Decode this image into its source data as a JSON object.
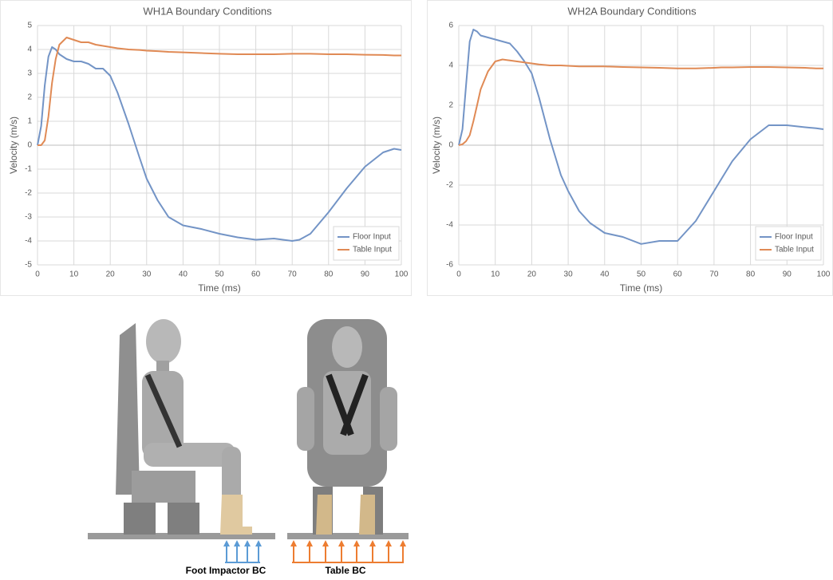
{
  "chart_data": [
    {
      "type": "line",
      "title": "WH1A Boundary Conditions",
      "x_label": "Time (ms)",
      "y_label": "Velocity (m/s)",
      "x": [
        0,
        1,
        2,
        3,
        4,
        5,
        6,
        8,
        10,
        12,
        14,
        16,
        18,
        20,
        22,
        25,
        28,
        30,
        33,
        36,
        40,
        45,
        50,
        55,
        60,
        65,
        70,
        72,
        75,
        80,
        85,
        90,
        95,
        98,
        100
      ],
      "series": [
        {
          "name": "Floor Input",
          "color": "#7394c6",
          "values": [
            0,
            0.8,
            2.5,
            3.7,
            4.1,
            4.0,
            3.8,
            3.6,
            3.5,
            3.5,
            3.4,
            3.2,
            3.2,
            2.9,
            2.2,
            0.9,
            -0.5,
            -1.4,
            -2.3,
            -3.0,
            -3.35,
            -3.5,
            -3.7,
            -3.85,
            -3.95,
            -3.9,
            -4.0,
            -3.95,
            -3.7,
            -2.8,
            -1.8,
            -0.9,
            -0.3,
            -0.15,
            -0.2
          ]
        },
        {
          "name": "Table Input",
          "color": "#e08a55",
          "values": [
            0,
            0,
            0.2,
            1.2,
            2.6,
            3.6,
            4.2,
            4.5,
            4.4,
            4.3,
            4.3,
            4.2,
            4.15,
            4.1,
            4.05,
            4.0,
            3.98,
            3.95,
            3.93,
            3.9,
            3.88,
            3.85,
            3.82,
            3.8,
            3.8,
            3.8,
            3.82,
            3.82,
            3.82,
            3.8,
            3.8,
            3.78,
            3.77,
            3.75,
            3.75
          ]
        }
      ],
      "xlim": [
        0,
        100
      ],
      "xticks": [
        0,
        10,
        20,
        30,
        40,
        50,
        60,
        70,
        80,
        90,
        100
      ],
      "ylim": [
        -5,
        5
      ],
      "yticks": [
        -5,
        -4,
        -3,
        -2,
        -1,
        0,
        1,
        2,
        3,
        4,
        5
      ],
      "grid": true,
      "legend": "lower right"
    },
    {
      "type": "line",
      "title": "WH2A Boundary Conditions",
      "x_label": "Time (ms)",
      "y_label": "Velocity (m/s)",
      "x": [
        0,
        1,
        2,
        3,
        4,
        5,
        6,
        8,
        10,
        12,
        14,
        16,
        18,
        20,
        22,
        25,
        28,
        30,
        33,
        36,
        40,
        45,
        50,
        55,
        60,
        65,
        70,
        72,
        75,
        80,
        85,
        90,
        95,
        98,
        100
      ],
      "series": [
        {
          "name": "Floor Input",
          "color": "#7394c6",
          "values": [
            0,
            0.8,
            3,
            5.2,
            5.8,
            5.7,
            5.5,
            5.4,
            5.3,
            5.2,
            5.1,
            4.7,
            4.2,
            3.6,
            2.4,
            0.3,
            -1.5,
            -2.3,
            -3.3,
            -3.9,
            -4.4,
            -4.6,
            -4.95,
            -4.8,
            -4.8,
            -3.8,
            -2.3,
            -1.7,
            -0.8,
            0.3,
            1.0,
            1.0,
            0.9,
            0.85,
            0.8
          ]
        },
        {
          "name": "Table Input",
          "color": "#e08a55",
          "values": [
            0,
            0.05,
            0.2,
            0.5,
            1.2,
            2.0,
            2.8,
            3.7,
            4.2,
            4.3,
            4.25,
            4.2,
            4.15,
            4.1,
            4.05,
            4.0,
            4.0,
            3.98,
            3.95,
            3.95,
            3.95,
            3.92,
            3.9,
            3.88,
            3.85,
            3.85,
            3.88,
            3.9,
            3.9,
            3.92,
            3.92,
            3.9,
            3.88,
            3.85,
            3.85
          ]
        }
      ],
      "xlim": [
        0,
        100
      ],
      "xticks": [
        0,
        10,
        20,
        30,
        40,
        50,
        60,
        70,
        80,
        90,
        100
      ],
      "ylim": [
        -6,
        6
      ],
      "yticks": [
        -6,
        -4,
        -2,
        0,
        2,
        4,
        6
      ],
      "grid": true,
      "legend": "lower right"
    }
  ],
  "figure_labels": {
    "left": "Foot Impactor BC",
    "right": "Table BC"
  }
}
